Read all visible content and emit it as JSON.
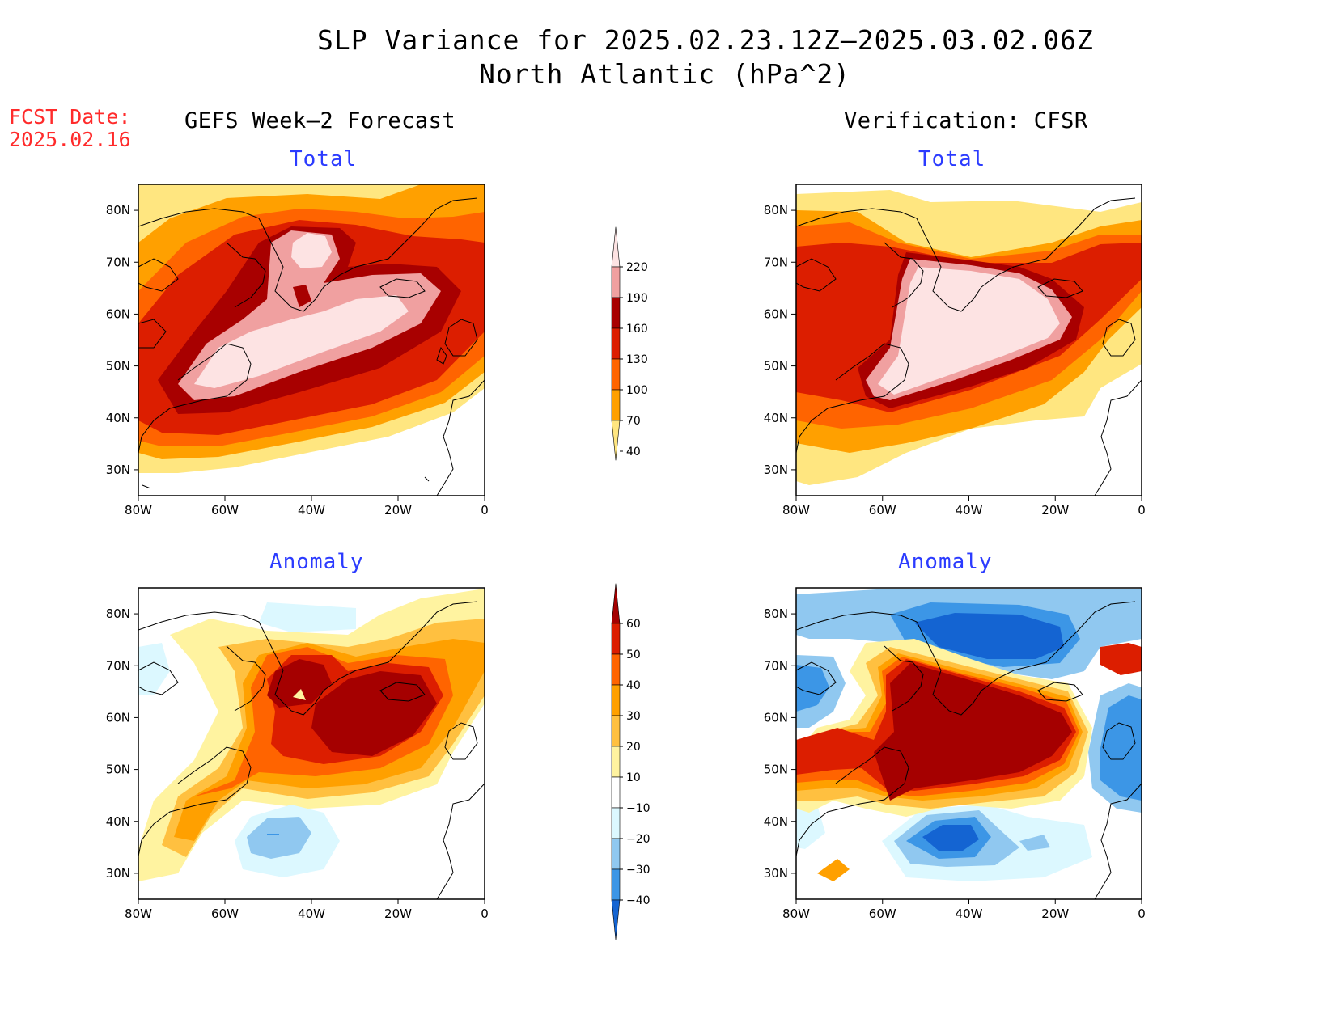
{
  "header": {
    "title_line1": "SLP Variance for 2025.02.23.12Z–2025.03.02.06Z",
    "title_line2": "North Atlantic (hPa^2)",
    "fcst_label": "FCST Date:",
    "fcst_date": "2025.02.16"
  },
  "columns": {
    "left_title": "GEFS Week–2 Forecast",
    "right_title": "Verification: CFSR"
  },
  "panels": {
    "top_label": "Total",
    "bottom_label": "Anomaly"
  },
  "axes": {
    "lat_labels": [
      "80N",
      "70N",
      "60N",
      "50N",
      "40N",
      "30N"
    ],
    "lon_labels": [
      "80W",
      "60W",
      "40W",
      "20W",
      "0"
    ]
  },
  "colorbars": {
    "total": {
      "levels": [
        "220",
        "190",
        "160",
        "130",
        "100",
        "70",
        "40"
      ],
      "colors": [
        "#fde3e3",
        "#f0a0a0",
        "#a80000",
        "#dc1e00",
        "#ff6400",
        "#ffa000",
        "#ffe680"
      ]
    },
    "anomaly": {
      "levels": [
        "60",
        "50",
        "40",
        "30",
        "20",
        "10",
        "−10",
        "−20",
        "−30",
        "−40"
      ],
      "colors": [
        "#a50000",
        "#dc1e00",
        "#ff6400",
        "#ffa000",
        "#ffc040",
        "#fff3a0",
        "#ffffff",
        "#dcf8ff",
        "#90c8f0",
        "#3c96e6",
        "#1464d2"
      ]
    }
  }
}
